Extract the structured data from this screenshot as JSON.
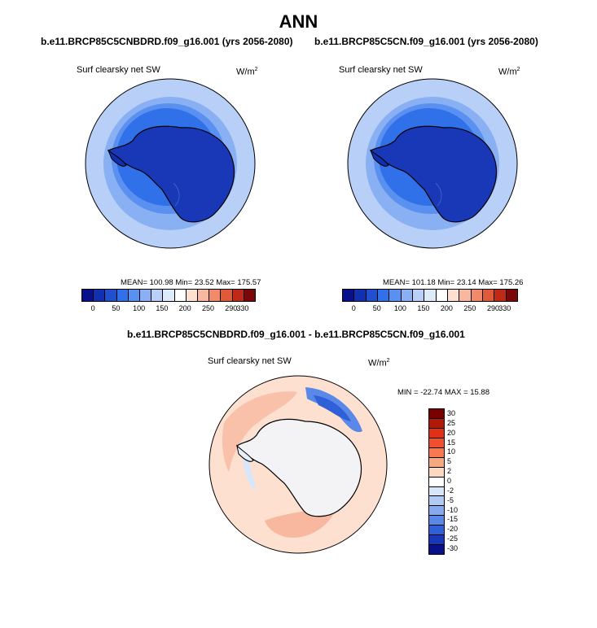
{
  "title": "ANN",
  "panels": [
    {
      "case": "b.e11.BRCP85C5CNBDRD.f09_g16.001 (yrs 2056-2080)",
      "variable": "Surf clearsky net SW",
      "units": "W/m",
      "units_sup": "2",
      "stats": "MEAN= 100.98  Min=  23.52  Max= 175.57"
    },
    {
      "case": "b.e11.BRCP85C5CN.f09_g16.001 (yrs 2056-2080)",
      "variable": "Surf clearsky net SW",
      "units": "W/m",
      "units_sup": "2",
      "stats": "MEAN= 101.18  Min=  23.14  Max= 175.26"
    }
  ],
  "diff_panel": {
    "case": "b.e11.BRCP85C5CNBDRD.f09_g16.001 - b.e11.BRCP85C5CN.f09_g16.001",
    "variable": "Surf clearsky net SW",
    "units": "W/m",
    "units_sup": "2",
    "stats": "MIN = -22.74 MAX =  15.88"
  },
  "colorbar_top": {
    "colors": [
      "#08108c",
      "#1030b0",
      "#2050d0",
      "#3070e8",
      "#5a90f0",
      "#8ab0f4",
      "#b8d0f8",
      "#ddeafa",
      "#ffffff",
      "#fde0d0",
      "#f8b8a0",
      "#f08a6a",
      "#e05a3a",
      "#c02818",
      "#7a0808"
    ],
    "labels": [
      "0",
      "50",
      "100",
      "150",
      "200",
      "250",
      "290",
      "330"
    ]
  },
  "colorbar_diff": {
    "colors": [
      "#7a0000",
      "#b01808",
      "#e03018",
      "#f05030",
      "#f87850",
      "#f8a880",
      "#fdd8c0",
      "#ffffff",
      "#d8e6fa",
      "#b0caf4",
      "#86aaf0",
      "#5a88e8",
      "#3060d8",
      "#1838b8",
      "#08108c"
    ],
    "labels": [
      "30",
      "25",
      "20",
      "15",
      "10",
      "5",
      "2",
      "0",
      "-2",
      "-5",
      "-10",
      "-15",
      "-20",
      "-25",
      "-30"
    ]
  }
}
